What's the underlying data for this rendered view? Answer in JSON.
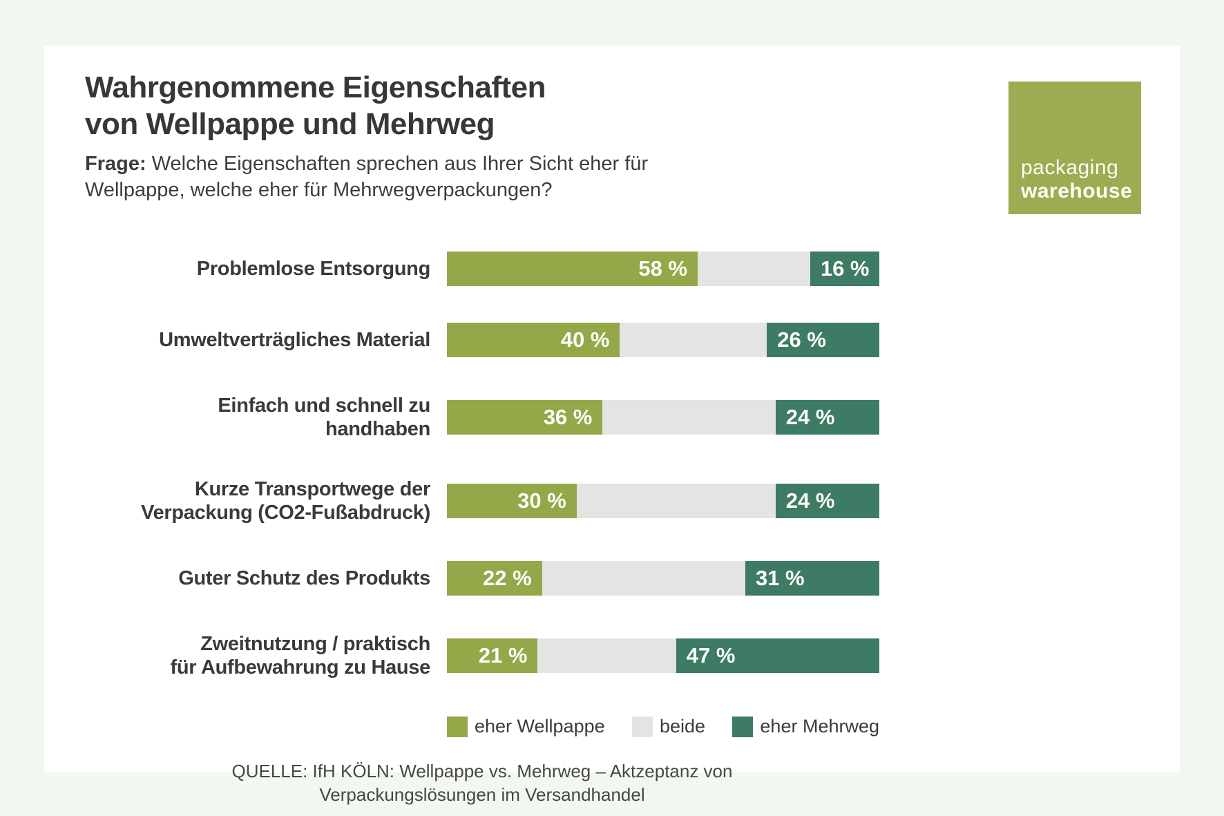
{
  "page": {
    "background": "#f2f8ef",
    "card_background": "#ffffff"
  },
  "header": {
    "title": "Wahrgenommene Eigenschaften\nvon Wellpappe und Mehrweg",
    "question_label": "Frage:",
    "question_text": " Welche Eigenschaften sprechen aus Ihrer Sicht eher für\nWellpappe, welche eher für Mehrwegverpackungen?"
  },
  "logo": {
    "line1": "packaging",
    "line2": "warehouse",
    "background": "#9cac52"
  },
  "colors": {
    "wellpappe": "#94a849",
    "beide": "#e4e4e2",
    "mehrweg": "#3e7b64",
    "text": "#383838"
  },
  "rows": [
    {
      "label": "Problemlose Entsorgung",
      "wellpappe": "58 %",
      "mehrweg": "16 %"
    },
    {
      "label": "Umweltverträgliches Material",
      "wellpappe": "40 %",
      "mehrweg": "26 %"
    },
    {
      "label": "Einfach und schnell zu\nhandhaben",
      "wellpappe": "36 %",
      "mehrweg": "24 %"
    },
    {
      "label": "Kurze Transportwege der\nVerpackung (CO2-Fußabdruck)",
      "wellpappe": "30 %",
      "mehrweg": "24 %"
    },
    {
      "label": "Guter Schutz des Produkts",
      "wellpappe": "22 %",
      "mehrweg": "31 %"
    },
    {
      "label": "Zweitnutzung / praktisch\nfür Aufbewahrung zu Hause",
      "wellpappe": "21 %",
      "mehrweg": "47 %"
    }
  ],
  "legend": [
    {
      "label": "eher Wellpappe",
      "color": "#94a849"
    },
    {
      "label": "beide",
      "color": "#e4e4e2"
    },
    {
      "label": "eher Mehrweg",
      "color": "#3e7b64"
    }
  ],
  "source": {
    "text": "QUELLE: IfH KÖLN: Wellpappe vs. Mehrweg – Aktzeptanz von\nVerpackungslösungen im Versandhandel"
  },
  "chart_data": {
    "type": "bar",
    "orientation": "horizontal",
    "stacked": true,
    "unit": "%",
    "title": "Wahrgenommene Eigenschaften von Wellpappe und Mehrweg",
    "subtitle": "Frage: Welche Eigenschaften sprechen aus Ihrer Sicht eher für Wellpappe, welche eher für Mehrwegverpackungen?",
    "categories": [
      "Problemlose Entsorgung",
      "Umweltverträgliches Material",
      "Einfach und schnell zu handhaben",
      "Kurze Transportwege der Verpackung (CO2-Fußabdruck)",
      "Guter Schutz des Produkts",
      "Zweitnutzung / praktisch für Aufbewahrung zu Hause"
    ],
    "series": [
      {
        "name": "eher Wellpappe",
        "color": "#94a849",
        "values": [
          58,
          40,
          36,
          30,
          22,
          21
        ]
      },
      {
        "name": "beide",
        "color": "#e4e4e2",
        "values": [
          26,
          34,
          40,
          46,
          47,
          32
        ]
      },
      {
        "name": "eher Mehrweg",
        "color": "#3e7b64",
        "values": [
          16,
          26,
          24,
          24,
          31,
          47
        ]
      }
    ],
    "value_labels_shown": [
      "eher Wellpappe",
      "eher Mehrweg"
    ],
    "xlim": [
      0,
      100
    ],
    "grid": false,
    "legend_position": "bottom",
    "source": "QUELLE: IfH KÖLN: Wellpappe vs. Mehrweg – Aktzeptanz von Verpackungslösungen im Versandhandel"
  }
}
